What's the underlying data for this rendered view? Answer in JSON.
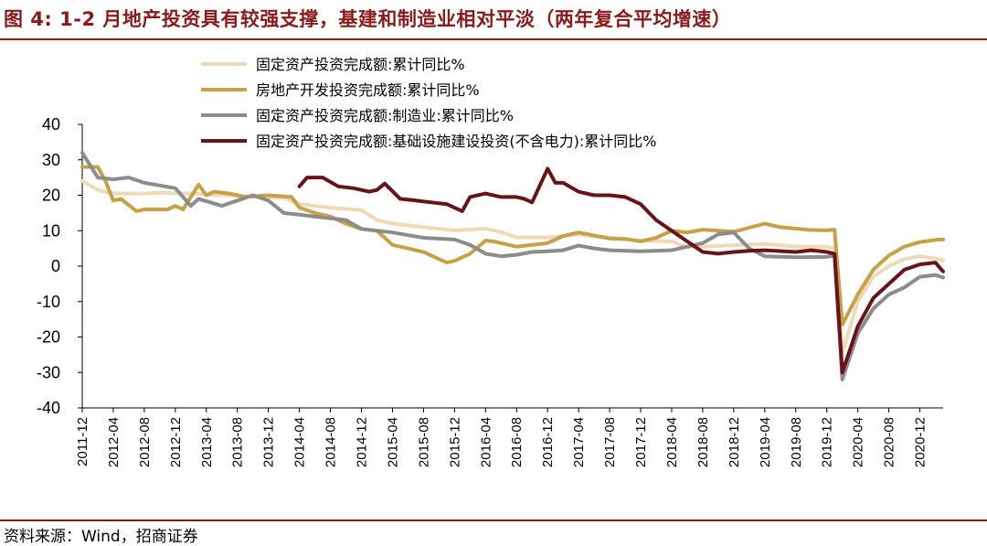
{
  "header": {
    "title": "图 4:  1-2 月地产投资具有较强支撑，基建和制造业相对平淡（两年复合平均增速）"
  },
  "footer": {
    "source": "资料来源：Wind，招商证券"
  },
  "chart_data": {
    "type": "line",
    "title": "图 4: 1-2 月地产投资具有较强支撑，基建和制造业相对平淡（两年复合平均增速）",
    "xlabel": "",
    "ylabel": "",
    "ylim": [
      -40,
      40
    ],
    "yticks": [
      -40,
      -30,
      -20,
      -10,
      0,
      10,
      20,
      30,
      40
    ],
    "grid": false,
    "legend_position": "top",
    "categories": [
      "2011-12",
      "2012-04",
      "2012-08",
      "2012-12",
      "2013-04",
      "2013-08",
      "2013-12",
      "2014-04",
      "2014-08",
      "2014-12",
      "2015-04",
      "2015-08",
      "2015-12",
      "2016-04",
      "2016-08",
      "2016-12",
      "2017-04",
      "2017-08",
      "2017-12",
      "2018-04",
      "2018-08",
      "2018-12",
      "2019-04",
      "2019-08",
      "2019-12",
      "2020-04",
      "2020-08",
      "2020-12"
    ],
    "x": [
      0,
      4,
      8,
      12,
      16,
      20,
      24,
      28,
      32,
      36,
      40,
      44,
      48,
      52,
      56,
      60,
      64,
      68,
      72,
      76,
      80,
      84,
      88,
      92,
      96,
      100,
      104,
      108
    ],
    "xlim": [
      0,
      111
    ],
    "series": [
      {
        "name": "固定资产投资完成额:累计同比%",
        "color": "#f0d9b5",
        "points": [
          [
            0,
            24
          ],
          [
            2,
            21.5
          ],
          [
            4,
            20.5
          ],
          [
            8,
            20.5
          ],
          [
            10,
            20.7
          ],
          [
            14,
            20.5
          ],
          [
            18,
            20
          ],
          [
            22,
            19.7
          ],
          [
            26,
            19.3
          ],
          [
            28,
            17.5
          ],
          [
            32,
            16.5
          ],
          [
            36,
            15.8
          ],
          [
            38,
            13
          ],
          [
            40,
            12
          ],
          [
            44,
            11
          ],
          [
            48,
            10.1
          ],
          [
            52,
            10.6
          ],
          [
            54,
            9.6
          ],
          [
            56,
            8.1
          ],
          [
            60,
            8.1
          ],
          [
            64,
            8.9
          ],
          [
            68,
            8
          ],
          [
            70,
            7.5
          ],
          [
            72,
            7.2
          ],
          [
            76,
            7
          ],
          [
            78,
            5.3
          ],
          [
            80,
            5.5
          ],
          [
            84,
            5.9
          ],
          [
            88,
            6.3
          ],
          [
            92,
            5.5
          ],
          [
            96,
            5.5
          ],
          [
            97,
            5
          ],
          [
            98,
            -24.5
          ],
          [
            100,
            -10
          ],
          [
            102,
            -3
          ],
          [
            104,
            0
          ],
          [
            106,
            2
          ],
          [
            108,
            2.8
          ],
          [
            110,
            2.2
          ],
          [
            111,
            1.6
          ]
        ]
      },
      {
        "name": "房地产开发投资完成额:累计同比%",
        "color": "#c8a046",
        "points": [
          [
            0,
            28
          ],
          [
            2,
            28
          ],
          [
            3,
            24
          ],
          [
            4,
            18.5
          ],
          [
            5,
            19
          ],
          [
            7,
            15.5
          ],
          [
            8,
            16
          ],
          [
            11,
            16
          ],
          [
            12,
            17
          ],
          [
            13,
            16
          ],
          [
            15,
            23
          ],
          [
            16,
            20
          ],
          [
            17,
            21
          ],
          [
            19,
            20.5
          ],
          [
            21,
            19.5
          ],
          [
            24,
            20
          ],
          [
            27,
            19.5
          ],
          [
            28,
            16.5
          ],
          [
            30,
            15
          ],
          [
            32,
            14
          ],
          [
            34,
            12
          ],
          [
            36,
            10.5
          ],
          [
            38,
            10
          ],
          [
            40,
            6
          ],
          [
            42,
            5
          ],
          [
            44,
            4
          ],
          [
            46,
            2
          ],
          [
            47,
            1
          ],
          [
            48,
            1.5
          ],
          [
            50,
            3.5
          ],
          [
            52,
            7.2
          ],
          [
            53,
            7
          ],
          [
            56,
            5.5
          ],
          [
            58,
            6
          ],
          [
            60,
            6.5
          ],
          [
            62,
            8.5
          ],
          [
            64,
            9.5
          ],
          [
            68,
            7.8
          ],
          [
            70,
            7.7
          ],
          [
            72,
            7
          ],
          [
            74,
            8
          ],
          [
            76,
            10
          ],
          [
            78,
            9.5
          ],
          [
            80,
            10.3
          ],
          [
            84,
            9.7
          ],
          [
            88,
            12
          ],
          [
            90,
            11
          ],
          [
            94,
            10.2
          ],
          [
            96,
            10.1
          ],
          [
            97,
            10.3
          ],
          [
            98,
            -16.5
          ],
          [
            100,
            -8
          ],
          [
            102,
            -1
          ],
          [
            104,
            3
          ],
          [
            106,
            5.5
          ],
          [
            108,
            6.8
          ],
          [
            110,
            7.4
          ],
          [
            111,
            7.5
          ]
        ]
      },
      {
        "name": "固定资产投资完成额:制造业:累计同比%",
        "color": "#8c8c8c",
        "points": [
          [
            0,
            32
          ],
          [
            2,
            25
          ],
          [
            4,
            24.5
          ],
          [
            6,
            25
          ],
          [
            8,
            23.5
          ],
          [
            12,
            22
          ],
          [
            14,
            17
          ],
          [
            15,
            19
          ],
          [
            18,
            17
          ],
          [
            20,
            18.5
          ],
          [
            22,
            20
          ],
          [
            24,
            18.5
          ],
          [
            26,
            15
          ],
          [
            28,
            14.5
          ],
          [
            30,
            14
          ],
          [
            34,
            13
          ],
          [
            36,
            10.5
          ],
          [
            40,
            9.5
          ],
          [
            44,
            8
          ],
          [
            48,
            7.5
          ],
          [
            50,
            6
          ],
          [
            52,
            3.5
          ],
          [
            54,
            2.8
          ],
          [
            56,
            3.2
          ],
          [
            58,
            4
          ],
          [
            60,
            4.2
          ],
          [
            62,
            4.5
          ],
          [
            64,
            5.8
          ],
          [
            66,
            5
          ],
          [
            68,
            4.5
          ],
          [
            72,
            4.2
          ],
          [
            76,
            4.5
          ],
          [
            80,
            6.5
          ],
          [
            82,
            9
          ],
          [
            84,
            9.5
          ],
          [
            86,
            5
          ],
          [
            88,
            2.8
          ],
          [
            92,
            2.5
          ],
          [
            96,
            2.6
          ],
          [
            97,
            3
          ],
          [
            98,
            -32
          ],
          [
            100,
            -19
          ],
          [
            102,
            -12
          ],
          [
            104,
            -8
          ],
          [
            106,
            -6
          ],
          [
            108,
            -3
          ],
          [
            110,
            -2.5
          ],
          [
            111,
            -3.2
          ]
        ]
      },
      {
        "name": "固定资产投资完成额:基础设施建设投资(不含电力):累计同比%",
        "color": "#6b1218",
        "points": [
          [
            28,
            22.5
          ],
          [
            29,
            25
          ],
          [
            31,
            25
          ],
          [
            33,
            22.5
          ],
          [
            35,
            22
          ],
          [
            37,
            21
          ],
          [
            38,
            21.5
          ],
          [
            39,
            23.3
          ],
          [
            41,
            19
          ],
          [
            43,
            18.5
          ],
          [
            45,
            18
          ],
          [
            47,
            17.5
          ],
          [
            49,
            15.5
          ],
          [
            50,
            19.5
          ],
          [
            52,
            20.5
          ],
          [
            54,
            19.5
          ],
          [
            56,
            19.5
          ],
          [
            57,
            19
          ],
          [
            58,
            18
          ],
          [
            60,
            27.5
          ],
          [
            61,
            23.5
          ],
          [
            62,
            23.5
          ],
          [
            64,
            21
          ],
          [
            66,
            20
          ],
          [
            68,
            20
          ],
          [
            70,
            19.5
          ],
          [
            72,
            17.5
          ],
          [
            74,
            13
          ],
          [
            76,
            10
          ],
          [
            78,
            7
          ],
          [
            80,
            4
          ],
          [
            82,
            3.5
          ],
          [
            84,
            4
          ],
          [
            86,
            4.3
          ],
          [
            88,
            4.5
          ],
          [
            92,
            4
          ],
          [
            94,
            4.5
          ],
          [
            96,
            4
          ],
          [
            97,
            3.5
          ],
          [
            98,
            -30
          ],
          [
            100,
            -17
          ],
          [
            102,
            -9
          ],
          [
            104,
            -5
          ],
          [
            106,
            -1
          ],
          [
            108,
            0.5
          ],
          [
            110,
            1
          ],
          [
            111,
            -1.5
          ]
        ]
      }
    ]
  }
}
